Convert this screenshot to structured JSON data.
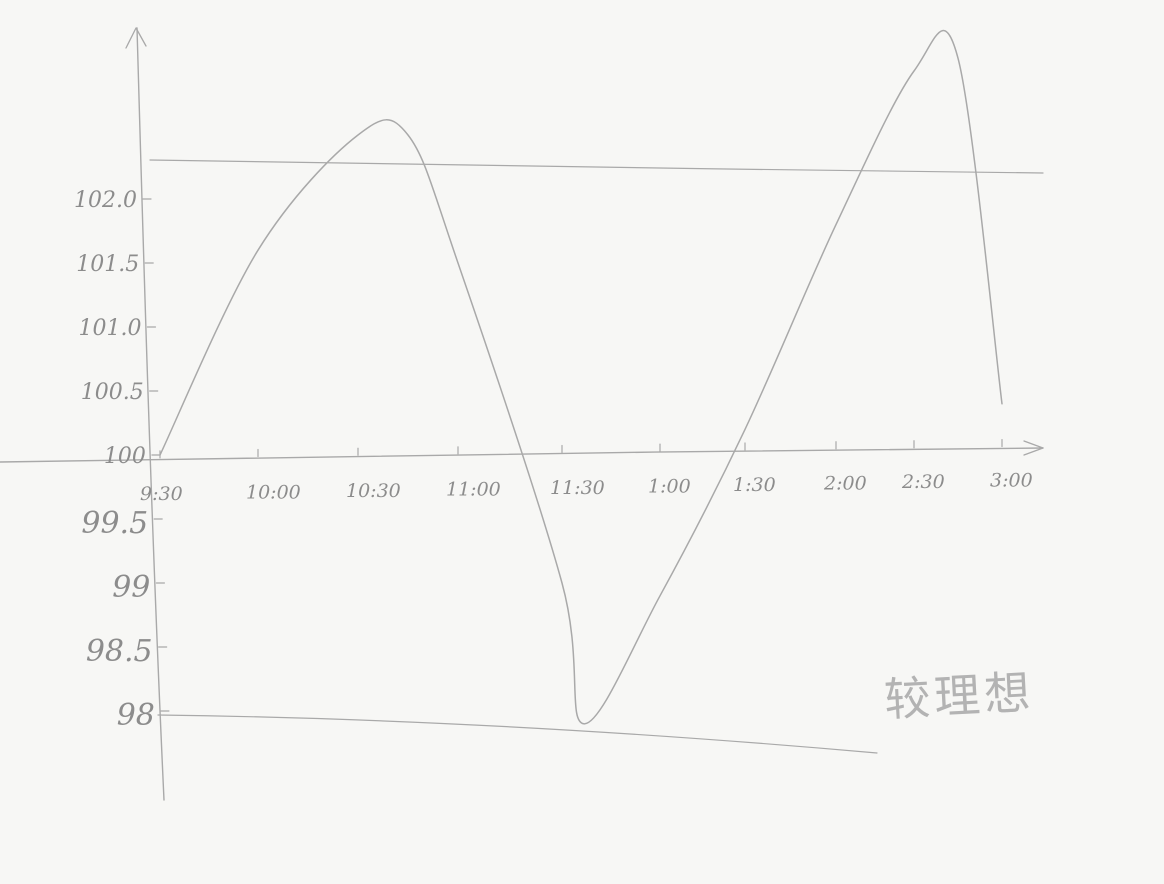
{
  "chart_data": {
    "type": "line",
    "title": "",
    "xlabel": "",
    "ylabel": "",
    "x_ticks": [
      "9:30",
      "10:00",
      "10:30",
      "11:00",
      "11:30",
      "1:00",
      "1:30",
      "2:00",
      "2:30",
      "3:00"
    ],
    "y_ticks": [
      "102.0",
      "101.5",
      "101.0",
      "100.5",
      "100",
      "99.5",
      "99",
      "98.5",
      "98"
    ],
    "baseline": 100,
    "ylim": [
      97.9,
      102.6
    ],
    "upper_band": 102.6,
    "lower_band": 97.9,
    "series": [
      {
        "x": [
          "9:30",
          "10:00",
          "10:30",
          "10:45",
          "11:00",
          "11:30",
          "11:50",
          "1:00",
          "1:30",
          "2:00",
          "2:30",
          "2:45",
          "3:00"
        ],
        "values": [
          100.0,
          101.6,
          102.5,
          102.5,
          101.5,
          99.0,
          97.9,
          98.9,
          100.2,
          101.8,
          103.0,
          103.1,
          100.4
        ]
      }
    ],
    "colors": {
      "pencil": "#a9a9a9",
      "text": "#8c8c8c"
    }
  },
  "annotation": "较理想"
}
